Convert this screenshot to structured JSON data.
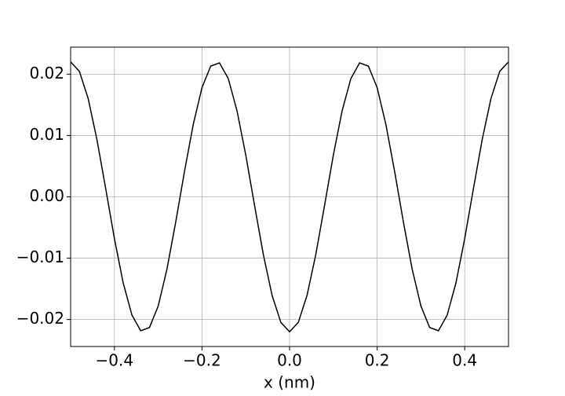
{
  "chart_data": {
    "type": "line",
    "x_label": "x (nm)",
    "x": [
      -0.5,
      -0.48,
      -0.46,
      -0.44,
      -0.42,
      -0.4,
      -0.38,
      -0.36,
      -0.34,
      -0.32,
      -0.3,
      -0.28,
      -0.26,
      -0.24,
      -0.22,
      -0.2,
      -0.18,
      -0.16,
      -0.14,
      -0.12,
      -0.1,
      -0.08,
      -0.06,
      -0.04,
      -0.02,
      0,
      0.02,
      0.04,
      0.06,
      0.08,
      0.1,
      0.12,
      0.14,
      0.16,
      0.18,
      0.2,
      0.22,
      0.24,
      0.26,
      0.28,
      0.3,
      0.32,
      0.34,
      0.36,
      0.38,
      0.4,
      0.42,
      0.44,
      0.46,
      0.48,
      0.5
    ],
    "series": [
      {
        "color": "#000000",
        "values": [
          0.022,
          0.02046,
          0.01604,
          0.00937,
          0.00138,
          -0.0068,
          -0.01402,
          -0.01928,
          -0.02183,
          -0.02131,
          -0.0178,
          -0.01179,
          -0.00412,
          0.00412,
          0.01179,
          0.0178,
          0.02131,
          0.02183,
          0.01928,
          0.01402,
          0.0068,
          -0.00138,
          -0.00937,
          -0.01604,
          -0.02046,
          -0.022,
          -0.02046,
          -0.01604,
          -0.00937,
          -0.00138,
          0.0068,
          0.01402,
          0.01928,
          0.02183,
          0.02131,
          0.0178,
          0.01179,
          0.00412,
          -0.00412,
          -0.01179,
          -0.0178,
          -0.02131,
          -0.02183,
          -0.01928,
          -0.01402,
          -0.0068,
          0.00138,
          0.00937,
          0.01604,
          0.02046,
          0.022
        ]
      }
    ],
    "xlim": [
      -0.5,
      0.5
    ],
    "ylim": [
      -0.0244,
      0.0244
    ],
    "xticks": [
      {
        "value": -0.4,
        "label": "−0.4"
      },
      {
        "value": -0.2,
        "label": "−0.2"
      },
      {
        "value": 0,
        "label": "0.0"
      },
      {
        "value": 0.2,
        "label": "0.2"
      },
      {
        "value": 0.4,
        "label": "0.4"
      }
    ],
    "yticks": [
      {
        "value": -0.02,
        "label": "−0.02"
      },
      {
        "value": -0.01,
        "label": "−0.01"
      },
      {
        "value": 0,
        "label": "0.00"
      },
      {
        "value": 0.01,
        "label": "0.01"
      },
      {
        "value": 0.02,
        "label": "0.02"
      }
    ],
    "grid": true
  }
}
